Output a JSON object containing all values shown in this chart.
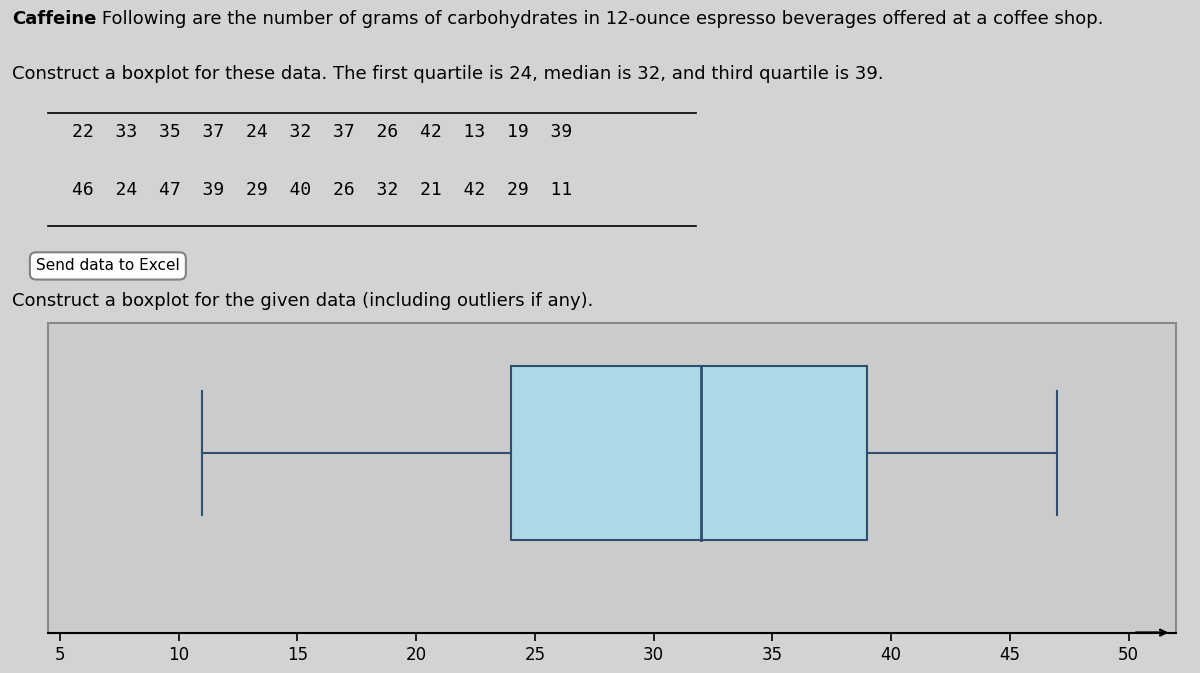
{
  "title_bold": "Caffeine",
  "title_line1": ": Following are the number of grams of carbohydrates in 12-ounce espresso beverages offered at a coffee shop.",
  "title_line2": "Construct a boxplot for these data. The first quartile is 24, median is 32, and third quartile is 39.",
  "data": [
    22,
    33,
    35,
    37,
    24,
    32,
    37,
    26,
    42,
    13,
    19,
    39,
    46,
    24,
    47,
    39,
    29,
    40,
    26,
    32,
    21,
    42,
    29,
    11
  ],
  "Q1": 24,
  "median": 32,
  "Q3": 39,
  "whisker_low": 11,
  "whisker_high": 47,
  "xmin": 5,
  "xmax": 50,
  "xticks": [
    5,
    10,
    15,
    20,
    25,
    30,
    35,
    40,
    45,
    50
  ],
  "box_color": "#add8e6",
  "box_edge_color": "#2f4f6f",
  "background_color": "#d3d3d3",
  "plot_bg_color": "#cbcbcb",
  "construct_label": "Construct a boxplot for the given data (including outliers if any).",
  "data_row1": "22  33  35  37  24  32  37  26  42  13  19  39",
  "data_row2": "46  24  47  39  29  40  26  32  21  42  29  11",
  "send_data_label": "Send data to Excel"
}
